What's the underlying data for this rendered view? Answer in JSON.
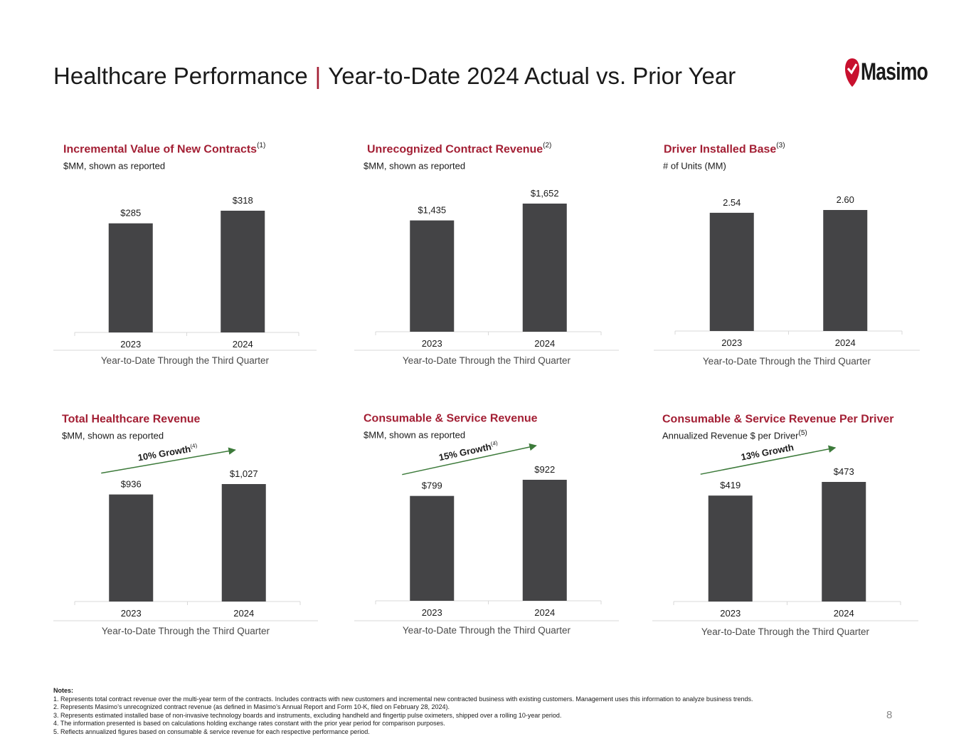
{
  "header": {
    "title_left": "Healthcare Performance",
    "separator": "|",
    "title_right": "Year-to-Date 2024 Actual vs. Prior Year",
    "logo_text": "Masimo"
  },
  "colors": {
    "accent": "#a31f34",
    "bar": "#444446",
    "arrow": "#3c7a3a"
  },
  "chart_data": [
    {
      "type": "bar",
      "title": "Incremental Value of New Contracts",
      "title_sup": "(1)",
      "subtitle": "$MM, shown as reported",
      "subtitle_sup": "",
      "categories": [
        "2023",
        "2024"
      ],
      "values": [
        285,
        318
      ],
      "value_labels": [
        "$285",
        "$318"
      ],
      "xlabel": "Year-to-Date Through the Third Quarter",
      "ylim": [
        0,
        318
      ],
      "growth": null
    },
    {
      "type": "bar",
      "title": "Unrecognized Contract Revenue",
      "title_sup": "(2)",
      "subtitle": "$MM, shown as reported",
      "subtitle_sup": "",
      "categories": [
        "2023",
        "2024"
      ],
      "values": [
        1435,
        1652
      ],
      "value_labels": [
        "$1,435",
        "$1,652"
      ],
      "xlabel": "Year-to-Date Through the Third Quarter",
      "ylim": [
        0,
        1652
      ],
      "growth": null
    },
    {
      "type": "bar",
      "title": "Driver Installed Base",
      "title_sup": "(3)",
      "subtitle": "# of Units (MM)",
      "subtitle_sup": "",
      "categories": [
        "2023",
        "2024"
      ],
      "values": [
        2.54,
        2.6
      ],
      "value_labels": [
        "2.54",
        "2.60"
      ],
      "xlabel": "Year-to-Date Through the Third Quarter",
      "ylim": [
        0,
        2.6
      ],
      "growth": null
    },
    {
      "type": "bar",
      "title": "Total Healthcare Revenue",
      "title_sup": "",
      "subtitle": "$MM, shown as reported",
      "subtitle_sup": "",
      "categories": [
        "2023",
        "2024"
      ],
      "values": [
        936,
        1027
      ],
      "value_labels": [
        "$936",
        "$1,027"
      ],
      "xlabel": "Year-to-Date Through the Third Quarter",
      "ylim": [
        0,
        1027
      ],
      "growth": {
        "label": "10% Growth",
        "sup": "(4)"
      }
    },
    {
      "type": "bar",
      "title": "Consumable & Service Revenue",
      "title_sup": "",
      "subtitle": "$MM, shown as reported",
      "subtitle_sup": "",
      "categories": [
        "2023",
        "2024"
      ],
      "values": [
        799,
        922
      ],
      "value_labels": [
        "$799",
        "$922"
      ],
      "xlabel": "Year-to-Date Through the Third Quarter",
      "ylim": [
        0,
        922
      ],
      "growth": {
        "label": "15% Growth",
        "sup": "(4)"
      }
    },
    {
      "type": "bar",
      "title": "Consumable & Service Revenue Per Driver",
      "title_sup": "",
      "subtitle": "Annualized Revenue $ per Driver",
      "subtitle_sup": "(5)",
      "categories": [
        "2023",
        "2024"
      ],
      "values": [
        419,
        473
      ],
      "value_labels": [
        "$419",
        "$473"
      ],
      "xlabel": "Year-to-Date Through the Third Quarter",
      "ylim": [
        0,
        473
      ],
      "growth": {
        "label": "13% Growth",
        "sup": ""
      }
    }
  ],
  "notes": {
    "header": "Notes:",
    "items": [
      "1.  Represents total contract revenue over the multi-year term of the contracts.  Includes contracts with new customers and incremental new contracted business with existing customers. Management uses this information to analyze business trends.",
      "2.  Represents Masimo’s unrecognized contract revenue (as defined in Masimo’s Annual Report and Form 10-K, filed on February 28, 2024).",
      "3.  Represents estimated installed base of non-invasive technology boards and instruments, excluding handheld and fingertip pulse oximeters, shipped over a rolling 10-year period.",
      "4.  The information presented is based on calculations holding exchange rates constant with the prior year period for comparison purposes.",
      "5.  Reflects annualized figures based on consumable & service revenue for each respective performance period."
    ]
  },
  "page_number": "8"
}
